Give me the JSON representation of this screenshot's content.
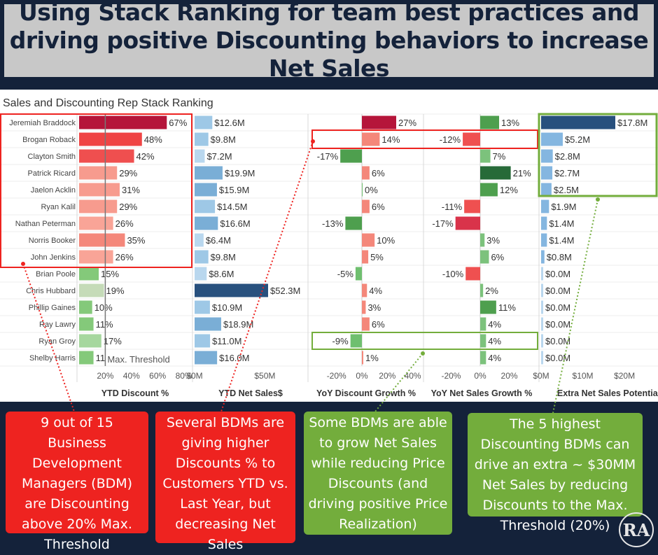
{
  "title": "Using Stack Ranking for team best practices and driving positive Discounting behaviors to increase Net Sales",
  "chart_data": {
    "type": "bar",
    "title": "Sales and Discounting Rep Stack Ranking",
    "reps": [
      "Jeremiah Braddock",
      "Brogan Roback",
      "Clayton Smith",
      "Patrick Ricard",
      "Jaelon Acklin",
      "Ryan Kalil",
      "Nathan Peterman",
      "Norris Booker",
      "John Jenkins",
      "Brian Poole",
      "Chris Hubbard",
      "Phillip Gaines",
      "Ray Lawry",
      "Ryan Groy",
      "Shelby Harris"
    ],
    "panels": [
      {
        "key": "ytd_discount",
        "xlabel": "YTD Discount %",
        "xlim": [
          0,
          80
        ],
        "ticks": [
          20,
          40,
          60,
          80
        ],
        "tick_labels": [
          "20%",
          "40%",
          "60%",
          "80%"
        ],
        "values": [
          67,
          48,
          42,
          29,
          31,
          29,
          26,
          35,
          26,
          15,
          19,
          10,
          11,
          17,
          11
        ],
        "labels": [
          "67%",
          "48%",
          "42%",
          "29%",
          "31%",
          "29%",
          "26%",
          "35%",
          "26%",
          "15%",
          "19%",
          "10%",
          "11%",
          "17%",
          "11"
        ],
        "reference_line": {
          "value": 20,
          "label": "Max. Threshold"
        }
      },
      {
        "key": "ytd_net_sales",
        "xlabel": "YTD Net Sales$",
        "xlim": [
          0,
          60
        ],
        "ticks": [
          0,
          50
        ],
        "tick_labels": [
          "$0M",
          "$50M"
        ],
        "values": [
          12.6,
          9.8,
          7.2,
          19.9,
          15.9,
          14.5,
          16.6,
          6.4,
          9.8,
          8.6,
          52.3,
          10.9,
          18.9,
          11.0,
          16.0
        ],
        "labels": [
          "$12.6M",
          "$9.8M",
          "$7.2M",
          "$19.9M",
          "$15.9M",
          "$14.5M",
          "$16.6M",
          "$6.4M",
          "$9.8M",
          "$8.6M",
          "$52.3M",
          "$10.9M",
          "$18.9M",
          "$11.0M",
          "$16.0M"
        ]
      },
      {
        "key": "yoy_discount_growth",
        "xlabel": "YoY Discount Growth %",
        "xlim": [
          -30,
          30
        ],
        "ticks": [
          -20,
          0,
          20,
          40
        ],
        "tick_labels": [
          "-20%",
          "0%",
          "20%",
          "40%"
        ],
        "values": [
          27,
          14,
          -17,
          6,
          0,
          6,
          -13,
          10,
          5,
          -5,
          4,
          3,
          6,
          -9,
          1
        ],
        "labels": [
          "27%",
          "14%",
          "-17%",
          "6%",
          "0%",
          "6%",
          "-13%",
          "10%",
          "5%",
          "-5%",
          "4%",
          "3%",
          "6%",
          "-9%",
          "1%"
        ]
      },
      {
        "key": "yoy_net_sales_growth",
        "xlabel": "YoY Net Sales Growth %",
        "xlim": [
          -30,
          30
        ],
        "ticks": [
          -20,
          0,
          20
        ],
        "tick_labels": [
          "-20%",
          "0%",
          "20%"
        ],
        "values": [
          13,
          -12,
          7,
          21,
          12,
          -11,
          -17,
          3,
          6,
          -10,
          2,
          11,
          4,
          4,
          4
        ],
        "labels": [
          "13%",
          "-12%",
          "7%",
          "21%",
          "12%",
          "-11%",
          "-17%",
          "3%",
          "6%",
          "-10%",
          "2%",
          "11%",
          "4%",
          "4%",
          "4%"
        ]
      },
      {
        "key": "extra_net_sales_potential",
        "xlabel": "Extra Net Sales Potential",
        "xlim": [
          0,
          25
        ],
        "ticks": [
          0,
          10,
          20
        ],
        "tick_labels": [
          "$0M",
          "$10M",
          "$20M"
        ],
        "values": [
          17.8,
          5.2,
          2.8,
          2.7,
          2.5,
          1.9,
          1.4,
          1.4,
          0.8,
          0,
          0,
          0,
          0,
          0,
          0
        ],
        "labels": [
          "$17.8M",
          "$5.2M",
          "$2.8M",
          "$2.7M",
          "$2.5M",
          "$1.9M",
          "$1.4M",
          "$1.4M",
          "$0.8M",
          "$0.0M",
          "$0.0M",
          "$0.0M",
          "$0.0M",
          "$0.0M",
          "$0.0M"
        ]
      }
    ]
  },
  "callouts": [
    {
      "text": "9 out of 15 Business Development Managers (BDM) are Discounting above 20% Max. Threshold",
      "color": "#ee2320"
    },
    {
      "text": "Several BDMs are giving higher Discounts % to Customers YTD vs. Last Year, but decreasing Net Sales",
      "color": "#ee2320"
    },
    {
      "text": "Some BDMs are able to grow Net Sales while reducing Price Discounts (and driving positive Price Realization)",
      "color": "#73ad3c"
    },
    {
      "text": "The 5 highest Discounting BDMs can drive an extra ~ $30MM Net Sales by reducing Discounts to the Max. Threshold (20%)",
      "color": "#73ad3c"
    }
  ],
  "logo": "RA"
}
